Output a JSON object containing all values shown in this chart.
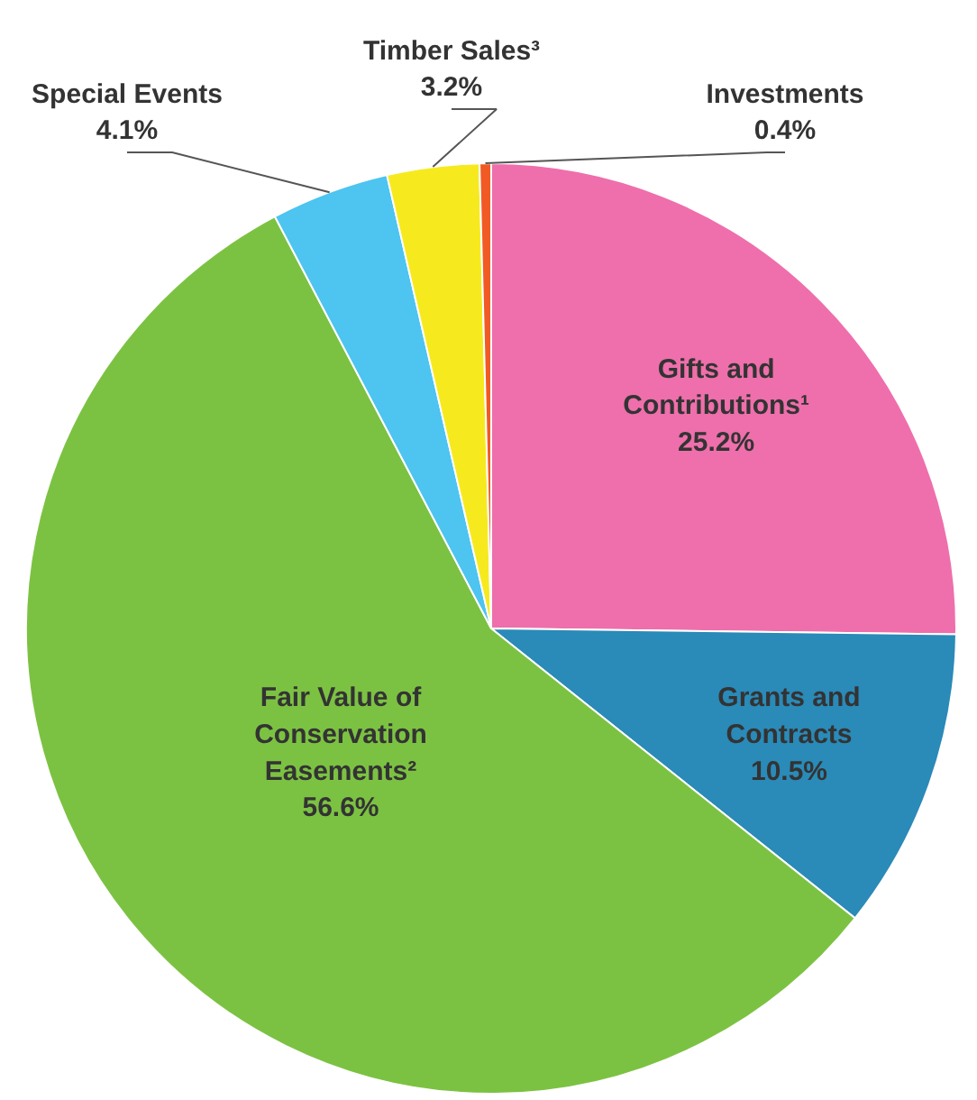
{
  "chart_data": {
    "type": "pie",
    "categories": [
      "Gifts and Contributions¹",
      "Grants and Contracts",
      "Fair Value of Conservation Easements²",
      "Special Events",
      "Timber Sales³",
      "Investments"
    ],
    "values": [
      25.2,
      10.5,
      56.6,
      4.1,
      3.2,
      0.4
    ],
    "colors": [
      "#ee6fab",
      "#2a8ab8",
      "#7cc242",
      "#4ec4f0",
      "#f6ea1e",
      "#f15a24"
    ],
    "value_labels": [
      "25.2%",
      "10.5%",
      "56.6%",
      "4.1%",
      "3.2%",
      "0.4%"
    ]
  }
}
